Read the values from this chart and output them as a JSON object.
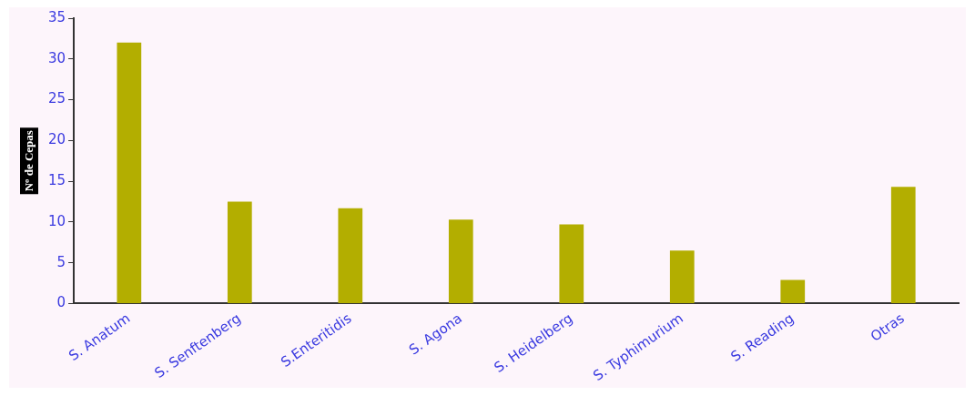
{
  "chart_data": {
    "type": "bar",
    "ylabel": "Nº de Cepas",
    "categories": [
      "S. Anatum",
      "S. Senftenberg",
      "S.Enteritidis",
      "S. Agona",
      "S. Heidelberg",
      "S. Typhimurium",
      "S. Reading",
      "Otras"
    ],
    "values": [
      32,
      12.5,
      11.7,
      10.3,
      9.7,
      6.5,
      2.9,
      14.3
    ],
    "color": "#b3ae00",
    "ylim": [
      0,
      35
    ],
    "yticks": [
      0,
      5,
      10,
      15,
      20,
      25,
      30,
      35
    ],
    "grid": false,
    "legend": false
  }
}
